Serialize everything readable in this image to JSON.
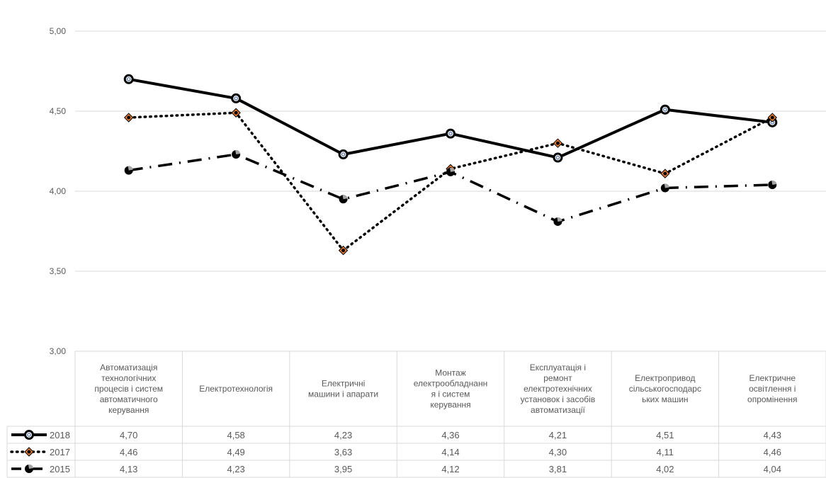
{
  "chart_data": {
    "type": "line",
    "title": "",
    "xlabel": "",
    "ylabel": "",
    "ylim": [
      3.0,
      5.0
    ],
    "yticks": [
      "3,00",
      "3,50",
      "4,00",
      "4,50",
      "5,00"
    ],
    "grid": true,
    "legend_placement": "data-table-left",
    "categories": [
      "Автоматизація технологічних процесів і систем автоматичного керування",
      "Електротехнологія",
      "Електричні машини і апарати",
      "Монтаж електрообладнання і систем керування",
      "Експлуатація і ремонт електротехнічних установок і засобів автоматизації",
      "Електропривод сільськогосподарських машин",
      "Електричне освітлення і опромінення"
    ],
    "category_lines": [
      [
        "Автоматизація",
        "технологічних",
        "процесів і систем",
        "автоматичного",
        "керування"
      ],
      [
        "Електротехнологія"
      ],
      [
        "Електричні",
        "машини і апарати"
      ],
      [
        "Монтаж",
        "електрообладнанн",
        "я і систем",
        "керування"
      ],
      [
        "Експлуатація і",
        "ремонт",
        "електротехнічних",
        "установок і засобів",
        "автоматизації"
      ],
      [
        "Електропривод",
        "сільськогосподарс",
        "ьких машин"
      ],
      [
        "Електричне",
        "освітлення і",
        "опромінення"
      ]
    ],
    "series": [
      {
        "name": "2018",
        "values": [
          4.7,
          4.58,
          4.23,
          4.36,
          4.21,
          4.51,
          4.43
        ],
        "labels": [
          "4,70",
          "4,58",
          "4,23",
          "4,36",
          "4,21",
          "4,51",
          "4,43"
        ],
        "style": "solid",
        "color": "#000000",
        "marker_fill": "#ffffff",
        "marker_accent": "#2f5597"
      },
      {
        "name": "2017",
        "values": [
          4.46,
          4.49,
          3.63,
          4.14,
          4.3,
          4.11,
          4.46
        ],
        "labels": [
          "4,46",
          "4,49",
          "3,63",
          "4,14",
          "4,30",
          "4,11",
          "4,46"
        ],
        "style": "dotted",
        "color": "#000000",
        "marker_fill": "#ed7d31",
        "marker_accent": "#ed7d31"
      },
      {
        "name": "2015",
        "values": [
          4.13,
          4.23,
          3.95,
          4.12,
          3.81,
          4.02,
          4.04
        ],
        "labels": [
          "4,13",
          "4,23",
          "3,95",
          "4,12",
          "3,81",
          "4,02",
          "4,04"
        ],
        "style": "dashdot",
        "color": "#000000",
        "marker_fill": "#a5a5a5",
        "marker_accent": "#a5a5a5"
      }
    ]
  }
}
